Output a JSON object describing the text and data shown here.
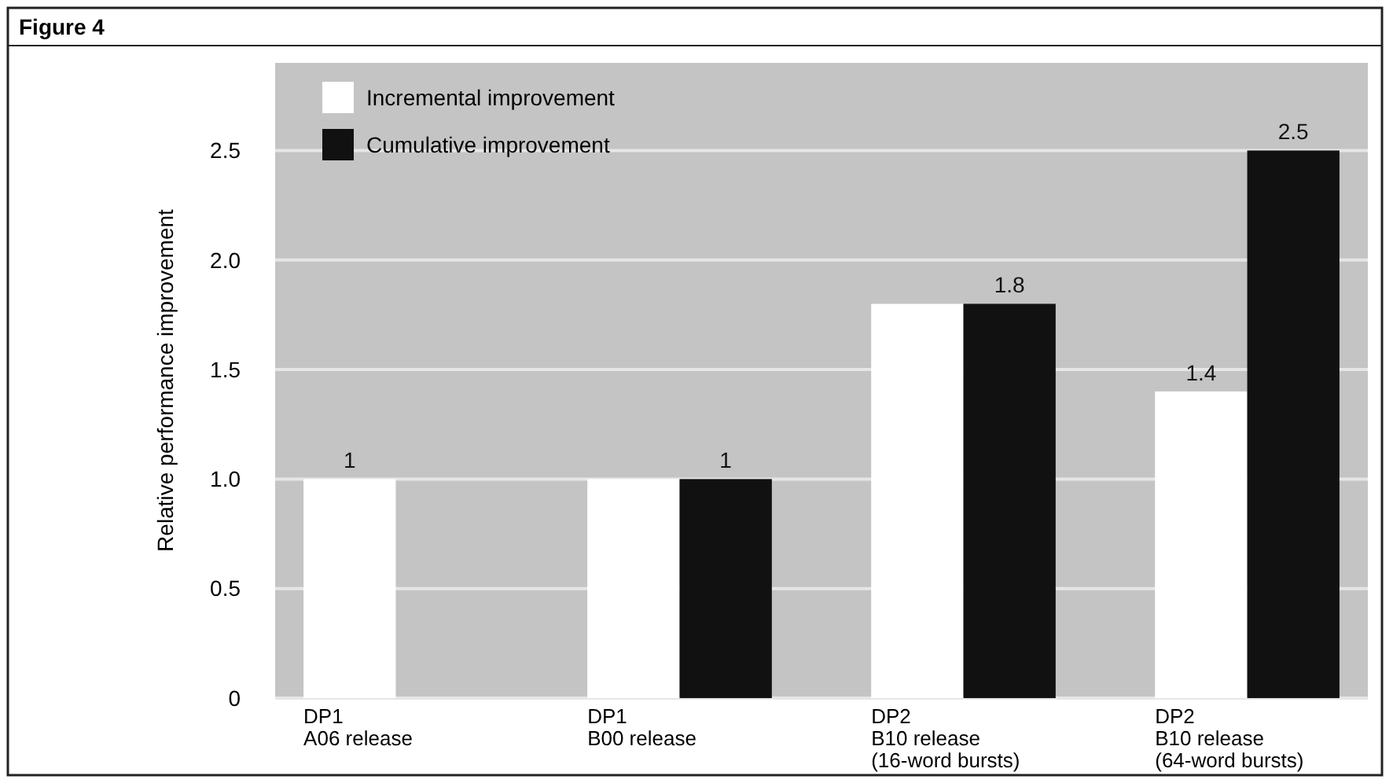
{
  "chart_data": {
    "type": "bar",
    "title": "Figure 4",
    "ylabel": "Relative performance improvement",
    "categories": [
      "DP1\nA06 release",
      "DP1\nB00 release",
      "DP2\nB10 release\n(16-word bursts)",
      "DP2\nB10 release\n(64-word bursts)"
    ],
    "series": [
      {
        "name": "Incremental improvement",
        "color": "#ffffff",
        "values": [
          1,
          1,
          1.8,
          1.4
        ],
        "value_labels": [
          "1",
          null,
          null,
          "1.4"
        ]
      },
      {
        "name": "Cumulative improvement",
        "color": "#111111",
        "values": [
          null,
          1,
          1.8,
          2.5
        ],
        "value_labels": [
          null,
          "1",
          "1.8",
          "2.5"
        ]
      }
    ],
    "ylim": [
      0,
      2.9
    ],
    "yticks": [
      0,
      {
        "value": 0.5,
        "label": "0.5"
      },
      {
        "value": 1,
        "label": "1.0"
      },
      {
        "value": 1.5,
        "label": "1.5"
      },
      {
        "value": 2,
        "label": "2.0"
      },
      2.5
    ],
    "grid": "y",
    "legend": "top left"
  }
}
